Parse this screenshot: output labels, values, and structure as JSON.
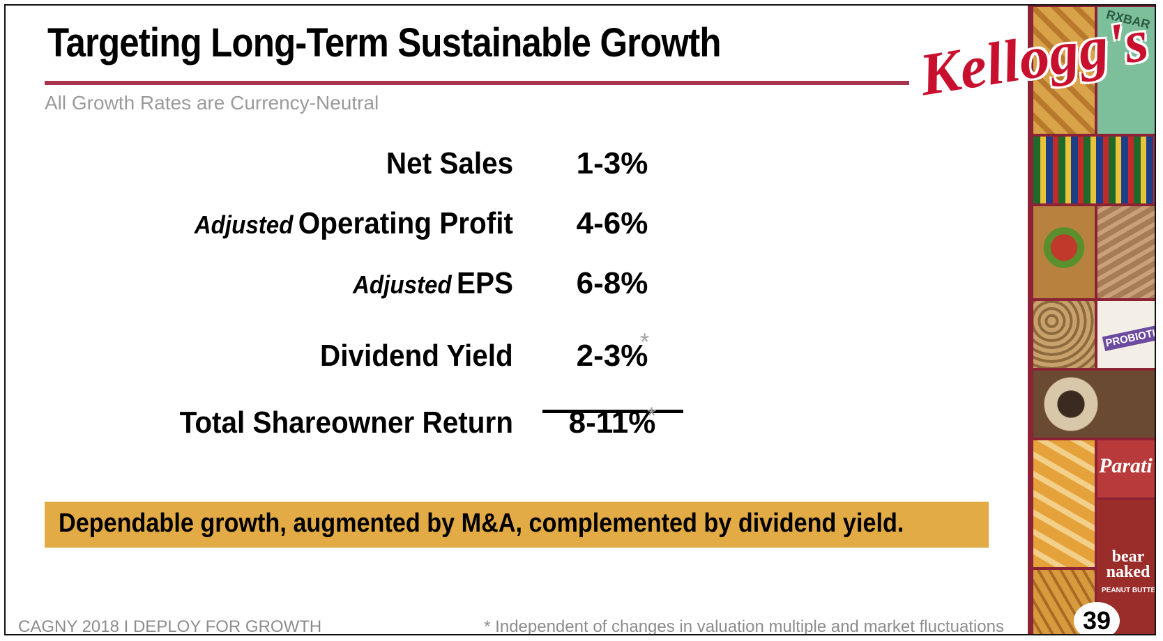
{
  "header": {
    "title": "Targeting Long-Term Sustainable Growth",
    "subtitle": "All Growth Rates are Currency-Neutral",
    "logo_text": "Kellogg's"
  },
  "metrics": [
    {
      "qualifier": "",
      "label": "Net Sales",
      "value": "1-3%"
    },
    {
      "qualifier": "Adjusted",
      "label": "Operating Profit",
      "value": "4-6%"
    },
    {
      "qualifier": "Adjusted",
      "label": "EPS",
      "value": "6-8%"
    },
    {
      "qualifier": "",
      "label": "Dividend Yield",
      "value": "2-3%",
      "asterisk": "*"
    },
    {
      "qualifier": "",
      "label": "Total Shareowner Return",
      "value": "8-11%",
      "asterisk": "*"
    }
  ],
  "banner": {
    "text": "Dependable growth, augmented by M&A, complemented by dividend yield."
  },
  "footer": {
    "left": "CAGNY 2018  I  DEPLOY FOR GROWTH",
    "footnote": "* Independent of changes in valuation multiple and market fluctuations",
    "page_number": "39"
  },
  "collage": {
    "rxbar": "RXBAR",
    "probiotic": "PROBIOTIC",
    "parati": "Parati",
    "bear_naked": "bear naked",
    "peanut_butter": "PEANUT BUTTER"
  },
  "colors": {
    "accent_rule": "#a8344c",
    "banner": "#e3ab45",
    "logo": "#c8102e",
    "collage_border": "#8b2236"
  }
}
